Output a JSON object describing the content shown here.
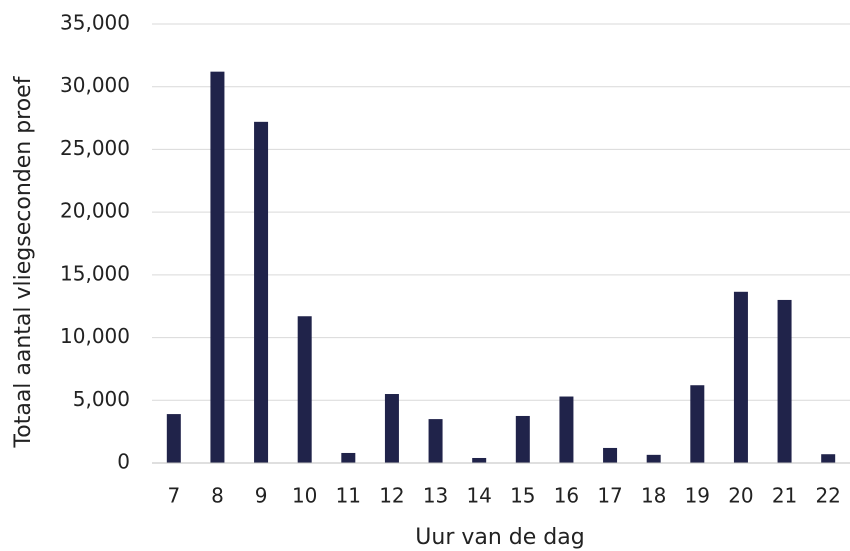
{
  "chart_data": {
    "type": "bar",
    "x_label": "Uur van de dag",
    "y_label": "Totaal aantal vliegseconden proef",
    "categories": [
      "7",
      "8",
      "9",
      "10",
      "11",
      "12",
      "13",
      "14",
      "15",
      "16",
      "17",
      "18",
      "19",
      "20",
      "21",
      "22"
    ],
    "values": [
      3900,
      31200,
      27200,
      11700,
      800,
      5500,
      3500,
      400,
      3750,
      5300,
      1200,
      650,
      6200,
      13650,
      13000,
      700
    ],
    "color": "#20234a",
    "ylim": [
      0,
      35000
    ],
    "yticks": [
      0,
      {
        "value": 5000,
        "label": "5,000"
      },
      {
        "value": 10000,
        "label": "10,000"
      },
      {
        "value": 15000,
        "label": "15,000"
      },
      {
        "value": 20000,
        "label": "20,000"
      },
      {
        "value": 25000,
        "label": "25,000"
      },
      {
        "value": 30000,
        "label": "30,000"
      },
      {
        "value": 35000,
        "label": "35,000"
      }
    ],
    "grid": true
  }
}
